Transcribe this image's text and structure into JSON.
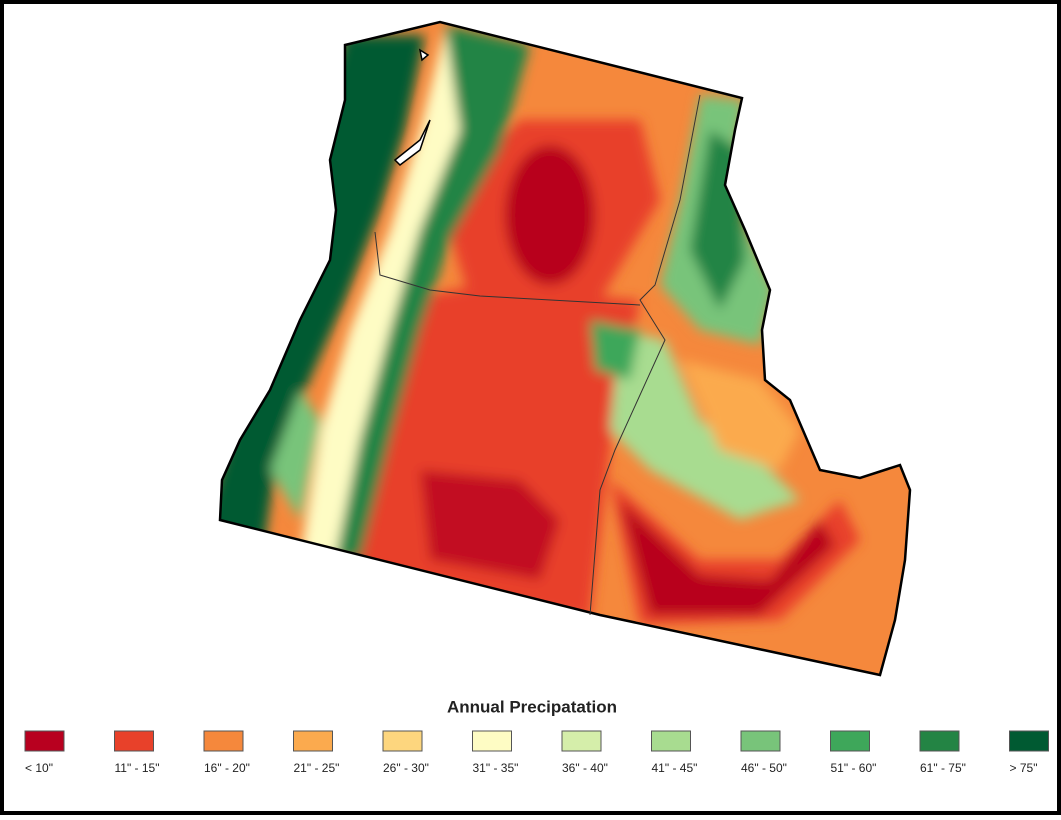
{
  "title": "Annual Precipatation",
  "legend": [
    {
      "label": "< 10\"",
      "color": "#b8001f"
    },
    {
      "label": "11\" - 15\"",
      "color": "#e8412a"
    },
    {
      "label": "16\" - 20\"",
      "color": "#f5883c"
    },
    {
      "label": "21\" - 25\"",
      "color": "#fbaa4e"
    },
    {
      "label": "26\" - 30\"",
      "color": "#fdd67e"
    },
    {
      "label": "31\" - 35\"",
      "color": "#fefcc4"
    },
    {
      "label": "36\" - 40\"",
      "color": "#d5eeaa"
    },
    {
      "label": "41\" - 45\"",
      "color": "#a8dc90"
    },
    {
      "label": "46\" - 50\"",
      "color": "#78c47a"
    },
    {
      "label": "51\" - 60\"",
      "color": "#3ea75a"
    },
    {
      "label": "61\" - 75\"",
      "color": "#238444"
    },
    {
      "label": "> 75\"",
      "color": "#005a32"
    }
  ]
}
